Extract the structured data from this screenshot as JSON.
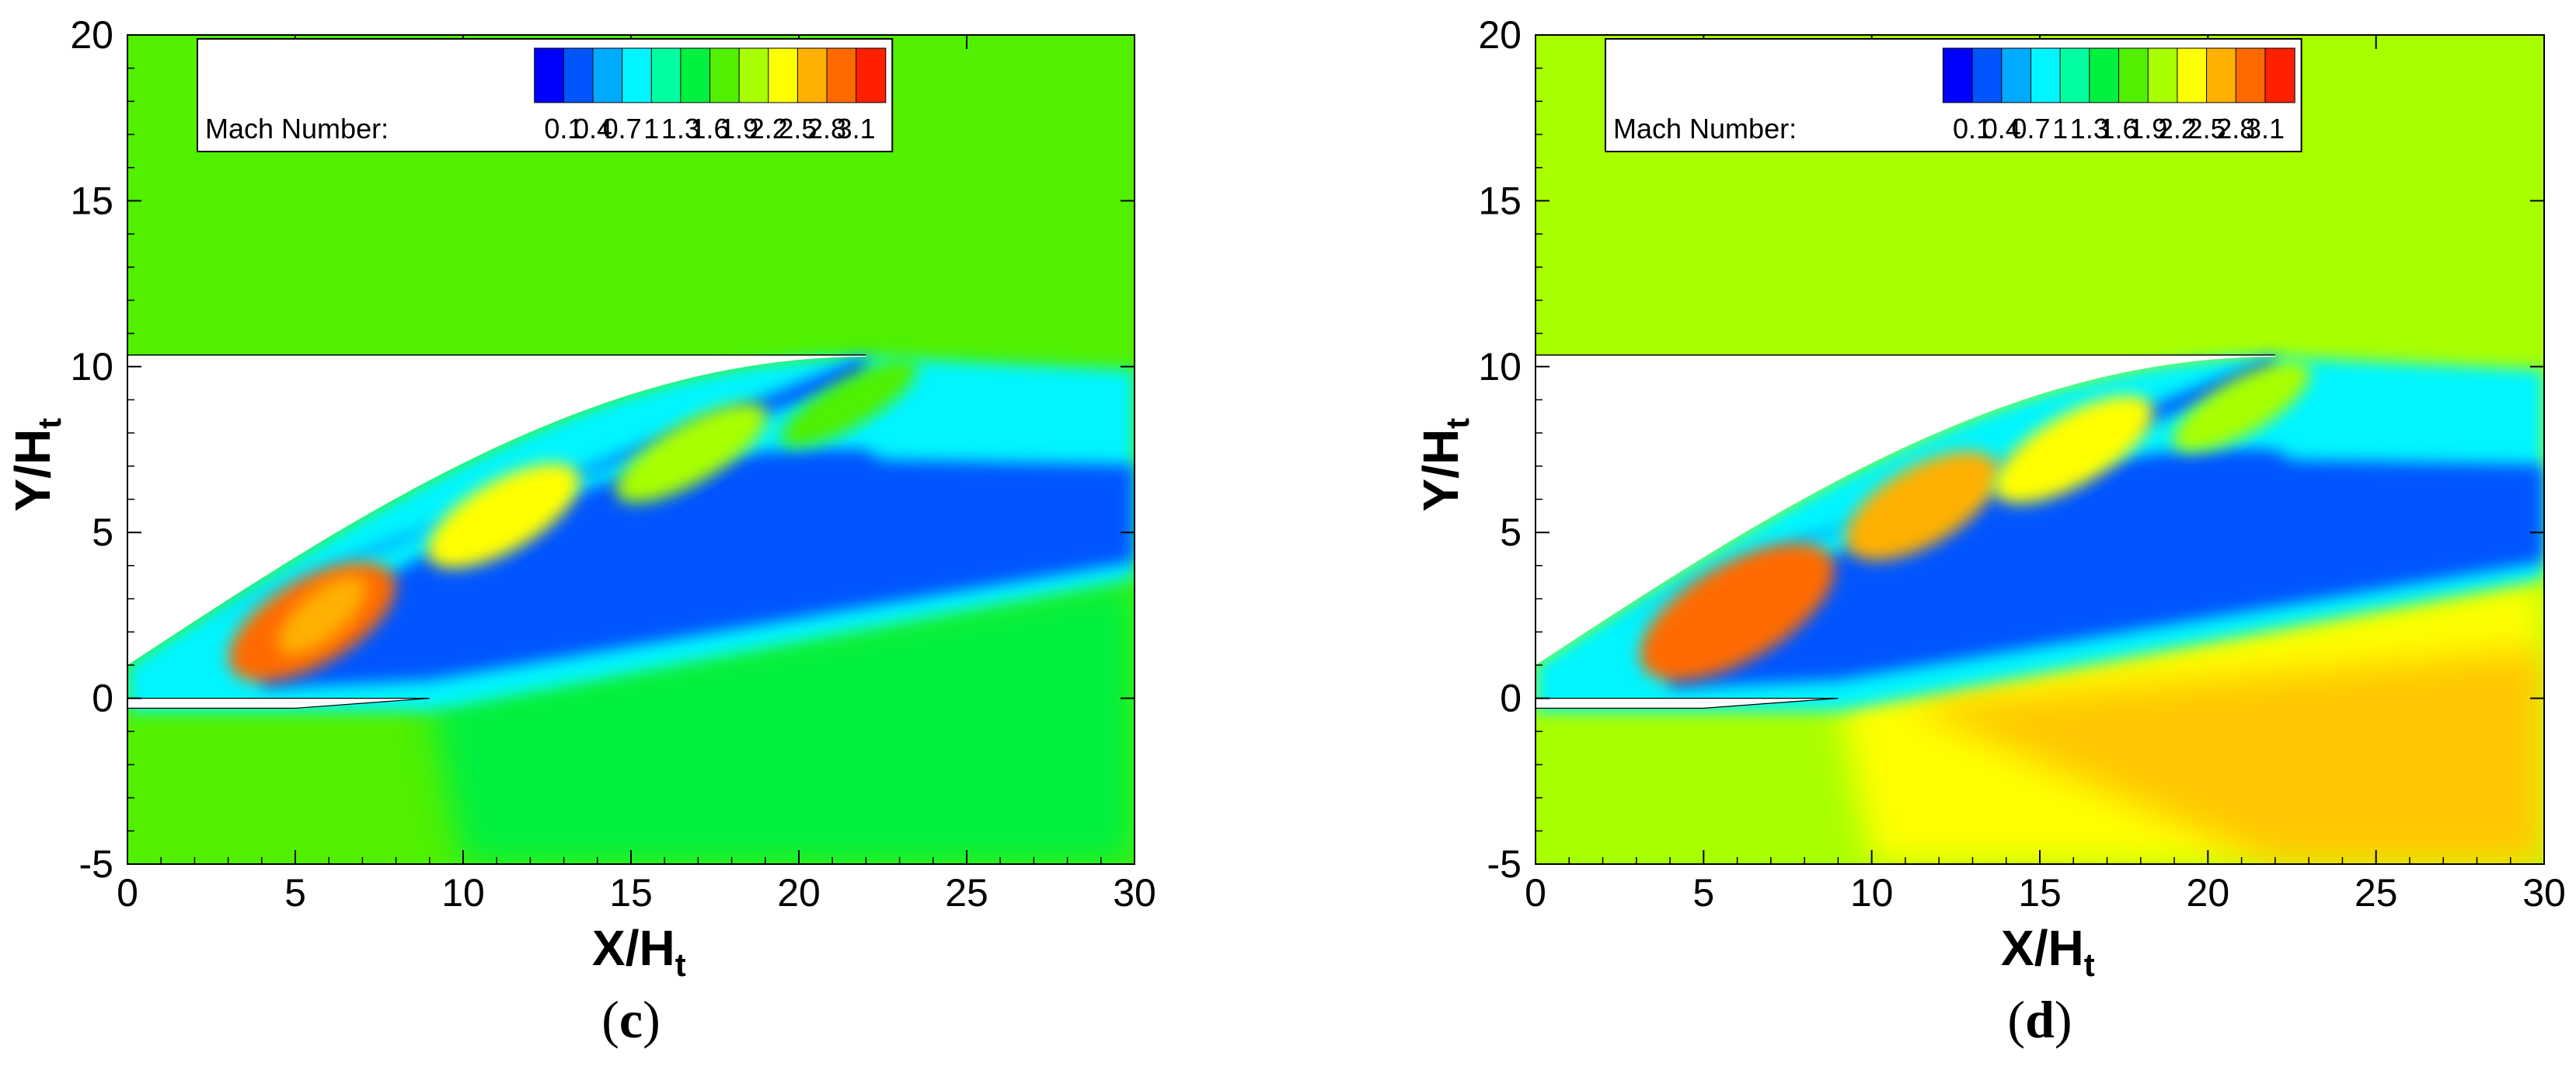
{
  "chart_data": [
    {
      "type": "heatmap",
      "panel_label": "c",
      "caption_open": "(",
      "caption_close": ")",
      "xlabel": "X/H",
      "xlabel_sub": "t",
      "ylabel": "Y/H",
      "ylabel_sub": "t",
      "xlim": [
        0,
        30
      ],
      "ylim": [
        -5,
        20
      ],
      "xticks": [
        0,
        5,
        10,
        15,
        20,
        25,
        30
      ],
      "yticks": [
        -5,
        0,
        5,
        10,
        15,
        20
      ],
      "legend": {
        "title": "Mach Number:",
        "levels": [
          0.1,
          0.4,
          0.7,
          1,
          1.3,
          1.6,
          1.9,
          2.2,
          2.5,
          2.8,
          3.1
        ],
        "placement": "top"
      },
      "freestream_mach": 1.6,
      "lower_plume_mach": 1.5,
      "nozzle_exit_x": 22,
      "nozzle_exit_y": 10.3
    },
    {
      "type": "heatmap",
      "panel_label": "d",
      "caption_open": "(",
      "caption_close": ")",
      "xlabel": "X/H",
      "xlabel_sub": "t",
      "ylabel": "Y/H",
      "ylabel_sub": "t",
      "xlim": [
        0,
        30
      ],
      "ylim": [
        -5,
        20
      ],
      "xticks": [
        0,
        5,
        10,
        15,
        20,
        25,
        30
      ],
      "yticks": [
        -5,
        0,
        5,
        10,
        15,
        20
      ],
      "legend": {
        "title": "Mach Number:",
        "levels": [
          0.1,
          0.4,
          0.7,
          1,
          1.3,
          1.6,
          1.9,
          2.2,
          2.5,
          2.8,
          3.1
        ],
        "placement": "top"
      },
      "freestream_mach": 1.9,
      "lower_plume_mach": 2.35,
      "nozzle_exit_x": 22,
      "nozzle_exit_y": 10.3
    }
  ],
  "colormap": [
    "#0000ff",
    "#0055ff",
    "#00aaff",
    "#00f5ff",
    "#00ffa0",
    "#00f040",
    "#50f000",
    "#a8ff00",
    "#ffff00",
    "#ffb000",
    "#ff6a00",
    "#ff2000"
  ]
}
